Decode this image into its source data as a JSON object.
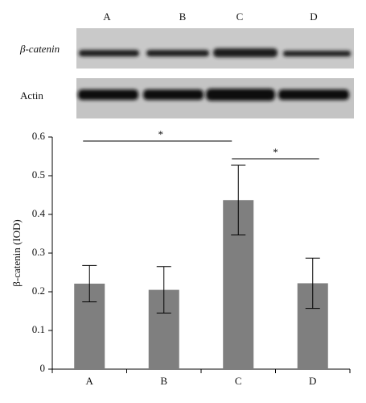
{
  "blot": {
    "lanes": [
      "A",
      "B",
      "C",
      "D"
    ],
    "rows": [
      "β-catenin",
      "Actin"
    ]
  },
  "chart_data": {
    "type": "bar",
    "ylabel": "β-catenin (IOD)",
    "categories": [
      "A",
      "B",
      "C",
      "D"
    ],
    "values": [
      0.221,
      0.205,
      0.437,
      0.222
    ],
    "errors": [
      0.047,
      0.06,
      0.09,
      0.065
    ],
    "color": "#7f7f7f",
    "ylim": [
      0,
      0.6
    ],
    "yticks": [
      0,
      0.1,
      0.2,
      0.3,
      0.4,
      0.5,
      0.6
    ],
    "comparisons": [
      {
        "from": "A",
        "to": "C",
        "text": "*"
      },
      {
        "from": "C",
        "to": "D",
        "text": "*"
      }
    ]
  }
}
